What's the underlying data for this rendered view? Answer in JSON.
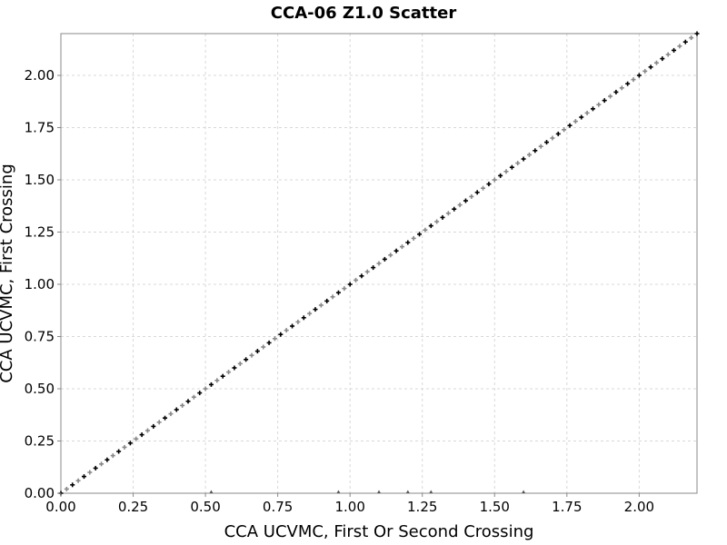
{
  "chart_data": {
    "type": "scatter",
    "title": "CCA-06 Z1.0 Scatter",
    "xlabel": "CCA UCVMC, First Or Second Crossing",
    "ylabel": "CCA UCVMC, First Crossing",
    "xlim": [
      0.0,
      2.2
    ],
    "ylim": [
      0.0,
      2.2
    ],
    "xticks": [
      "0.00",
      "0.25",
      "0.50",
      "0.75",
      "1.00",
      "1.25",
      "1.50",
      "1.75",
      "2.00"
    ],
    "yticks": [
      "0.00",
      "0.25",
      "0.50",
      "0.75",
      "1.00",
      "1.25",
      "1.50",
      "1.75",
      "2.00"
    ],
    "grid": true,
    "relation": "y = x",
    "x_range": [
      0.0,
      2.2
    ],
    "point_step": 0.02,
    "outlier_points": [
      {
        "x": 0.52,
        "y": 0.0
      },
      {
        "x": 0.96,
        "y": 0.0
      },
      {
        "x": 1.1,
        "y": 0.0
      },
      {
        "x": 1.2,
        "y": 0.0
      },
      {
        "x": 1.28,
        "y": 0.0
      },
      {
        "x": 1.6,
        "y": 0.0
      }
    ],
    "colors": {
      "points": "#000000",
      "points_alt": "#888888",
      "grid": "#d8d8d8",
      "frame": "#888888"
    }
  }
}
